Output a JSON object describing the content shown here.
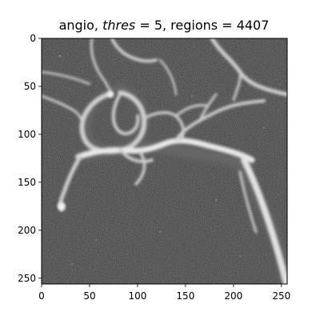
{
  "figure": {
    "title_prefix": "angio, ",
    "title_var": "thres",
    "title_mid": " = 5, regions = 4407"
  },
  "image": {
    "description": "grayscale angiography image with bright branching vessels on dark noisy background",
    "x_range": [
      0,
      256
    ],
    "y_range": [
      0,
      256
    ],
    "colors": {
      "background": "#2b2b2b",
      "vessel": "#e6e6e6",
      "frame": "#000000"
    }
  },
  "axes": {
    "x_ticks": [
      "0",
      "50",
      "100",
      "150",
      "200",
      "250"
    ],
    "y_ticks": [
      "0",
      "50",
      "100",
      "150",
      "200",
      "250"
    ]
  }
}
